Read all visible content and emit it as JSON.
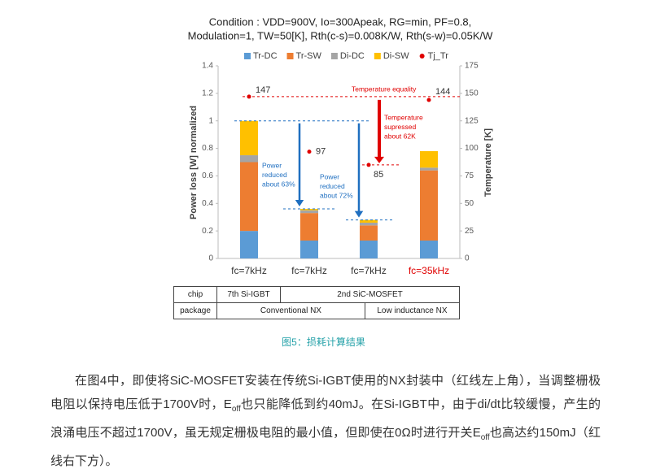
{
  "chart_data": {
    "type": "bar",
    "stacked": true,
    "title": [
      "Condition : VDD=900V, Io=300Apeak, RG=min, PF=0.8,",
      "Modulation=1, TW=50[K], Rth(c-s)=0.008K/W, Rth(s-w)=0.05K/W"
    ],
    "categories": [
      "fc=7kHz",
      "fc=7kHz",
      "fc=7kHz",
      "fc=35kHz"
    ],
    "category_colors": [
      "#333333",
      "#333333",
      "#333333",
      "#e00000"
    ],
    "series": [
      {
        "name": "Tr-DC",
        "color": "#5b9bd5",
        "values": [
          0.2,
          0.13,
          0.13,
          0.13
        ]
      },
      {
        "name": "Tr-SW",
        "color": "#ed7d31",
        "values": [
          0.5,
          0.2,
          0.11,
          0.51
        ]
      },
      {
        "name": "Di-DC",
        "color": "#a5a5a5",
        "values": [
          0.05,
          0.02,
          0.02,
          0.02
        ]
      },
      {
        "name": "Di-SW",
        "color": "#ffc000",
        "values": [
          0.25,
          0.01,
          0.02,
          0.12
        ]
      },
      {
        "name": "Tj_Tr",
        "color": "#e00000",
        "type": "scatter",
        "axis": "y2",
        "values": [
          147,
          97,
          85,
          144
        ]
      }
    ],
    "ylabel": "Power loss [W] normalized",
    "y2label": "Temperature [K]",
    "ylim": [
      0,
      1.4
    ],
    "yticks": [
      0,
      0.2,
      0.4,
      0.6,
      0.8,
      1,
      1.2,
      1.4
    ],
    "y2lim": [
      0,
      175
    ],
    "y2ticks": [
      0,
      25,
      50,
      75,
      100,
      125,
      150,
      175
    ],
    "annotations": [
      {
        "lines": [
          "Temperature equality"
        ],
        "color": "#e00000"
      },
      {
        "lines": [
          "Temperature",
          "supressed",
          "about 62K"
        ],
        "color": "#e00000"
      },
      {
        "lines": [
          "Power",
          "reduced",
          "about 63%"
        ],
        "color": "#1f6fc0"
      },
      {
        "lines": [
          "Power",
          "reduced",
          "about 72%"
        ],
        "color": "#1f6fc0"
      }
    ]
  },
  "table": {
    "rows": [
      [
        "chip",
        "7th Si-IGBT",
        "2nd SiC-MOSFET"
      ],
      [
        "package",
        "Conventional NX",
        "Low inductance NX"
      ]
    ]
  },
  "caption": "图5：损耗计算结果",
  "paragraph": [
    "在图4中，即使将SiC-MOSFET安装在传统Si-IGBT使用的NX封装中（红线左上角），当调整栅极电阻以保持电压低于1700V时，E",
    "off",
    "也只能降低到约40mJ。在Si-IGBT中，由于di/dt比较缓慢，产生的浪涌电压不超过1700V，虽无规定栅极电阻的最小值，但即使在0Ω时进行开关E",
    "off",
    "也高达约150mJ（红线右下方）。"
  ]
}
